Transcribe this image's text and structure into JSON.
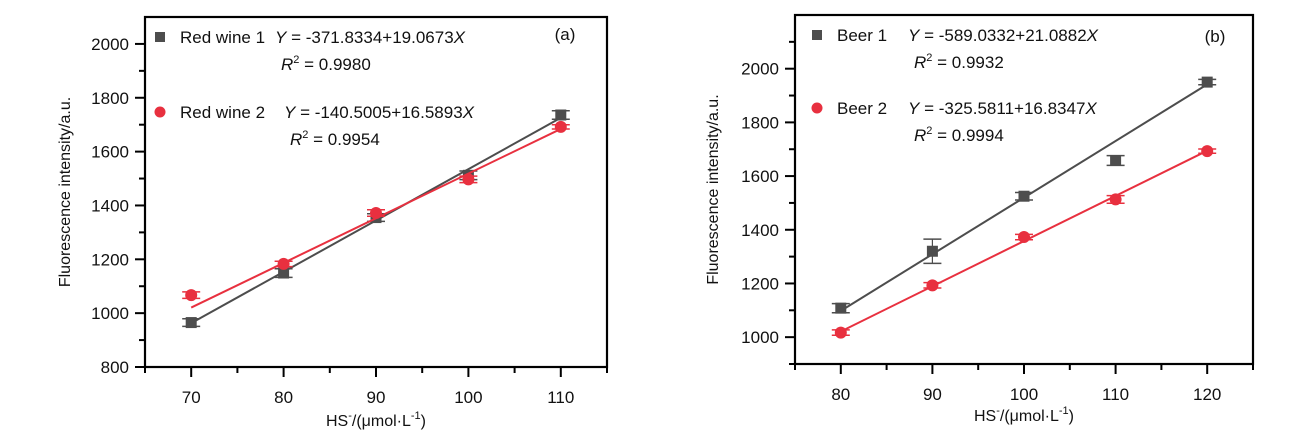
{
  "chart_data": [
    {
      "type": "scatter",
      "panel_label": "(a)",
      "xlabel": "HS-/(μmol·L-1)",
      "xlabel_parts": {
        "main": "HS",
        "sup1": "-",
        "mid": "/(μmol·L",
        "sup2": "-1",
        "end": ")"
      },
      "ylabel": "Fluorescence intensity/a.u.",
      "xlim": [
        65,
        115
      ],
      "ylim": [
        800,
        2100
      ],
      "xticks": [
        70,
        80,
        90,
        100,
        110
      ],
      "xminor": [
        65,
        75,
        85,
        95,
        105,
        115
      ],
      "yticks": [
        800,
        1000,
        1200,
        1400,
        1600,
        1800,
        2000
      ],
      "yminor": [
        900,
        1100,
        1300,
        1500,
        1700,
        1900
      ],
      "legend_position": "top-left",
      "series": [
        {
          "name": "Red wine 1",
          "marker": "square",
          "color": "#4d4d4d",
          "x": [
            70,
            80,
            90,
            100,
            110
          ],
          "y": [
            965,
            1149,
            1355,
            1512,
            1736
          ],
          "yerr": [
            14,
            16,
            14,
            16,
            16
          ],
          "fit": {
            "intercept": -371.8334,
            "slope": 19.0673
          },
          "equation": {
            "y": "Y",
            "rhs": " = -371.8334+19.0673",
            "x": "X"
          },
          "r2": {
            "r": "R",
            "sup": "2",
            "rhs": " = 0.9980"
          }
        },
        {
          "name": "Red wine 2",
          "marker": "circle",
          "color": "#e8303f",
          "x": [
            70,
            80,
            90,
            100,
            110
          ],
          "y": [
            1067,
            1183,
            1372,
            1497,
            1692
          ],
          "yerr": [
            12,
            10,
            12,
            12,
            8
          ],
          "fit": {
            "intercept": -140.5005,
            "slope": 16.5893
          },
          "equation": {
            "y": "Y",
            "rhs": " = -140.5005+16.5893",
            "x": "X"
          },
          "r2": {
            "r": "R",
            "sup": "2",
            "rhs": " = 0.9954"
          }
        }
      ]
    },
    {
      "type": "scatter",
      "panel_label": "(b)",
      "xlabel": "HS-/(μmol·L-1)",
      "xlabel_parts": {
        "main": "HS",
        "sup1": "-",
        "mid": "/(μmol·L",
        "sup2": "-1",
        "end": ")"
      },
      "ylabel": "Fluorescence intensity/a.u.",
      "xlim": [
        75,
        125
      ],
      "ylim": [
        900,
        2200
      ],
      "xticks": [
        80,
        90,
        100,
        110,
        120
      ],
      "xminor": [
        75,
        85,
        95,
        105,
        115,
        125
      ],
      "yticks": [
        1000,
        1200,
        1400,
        1600,
        1800,
        2000
      ],
      "yminor": [
        900,
        1100,
        1300,
        1500,
        1700,
        1900,
        2100
      ],
      "legend_position": "top-left",
      "series": [
        {
          "name": "Beer 1",
          "marker": "square",
          "color": "#4d4d4d",
          "x": [
            80,
            90,
            100,
            110,
            120
          ],
          "y": [
            1108,
            1320,
            1525,
            1658,
            1950
          ],
          "yerr": [
            17,
            45,
            14,
            18,
            10
          ],
          "fit": {
            "intercept": -589.0332,
            "slope": 21.0882
          },
          "equation": {
            "y": "Y",
            "rhs": " = -589.0332+21.0882",
            "x": "X"
          },
          "r2": {
            "r": "R",
            "sup": "2",
            "rhs": " = 0.9932"
          }
        },
        {
          "name": "Beer 2",
          "marker": "circle",
          "color": "#e8303f",
          "x": [
            80,
            90,
            100,
            110,
            120
          ],
          "y": [
            1017,
            1193,
            1373,
            1513,
            1693
          ],
          "yerr": [
            10,
            10,
            10,
            14,
            8
          ],
          "fit": {
            "intercept": -325.5811,
            "slope": 16.8347
          },
          "equation": {
            "y": "Y",
            "rhs": " = -325.5811+16.8347",
            "x": "X"
          },
          "r2": {
            "r": "R",
            "sup": "2",
            "rhs": " = 0.9994"
          }
        }
      ]
    }
  ]
}
